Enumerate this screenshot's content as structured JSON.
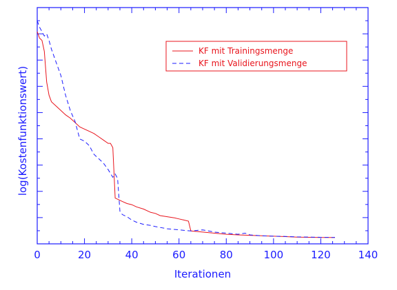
{
  "chart_data": {
    "type": "line",
    "title": "",
    "xlabel": "Iterationen",
    "ylabel": "log(Kostenfunktionswert)",
    "xlim": [
      0,
      140
    ],
    "ylim": [
      0,
      1
    ],
    "xticks": [
      "0",
      "20",
      "40",
      "60",
      "80",
      "100",
      "120",
      "140"
    ],
    "grid": false,
    "legend_position": "top-right",
    "colors": {
      "axes": "#1a1aff",
      "training": "#e8141c",
      "validation": "#1a1aff"
    },
    "series": [
      {
        "name": "KF mit Trainingsmenge",
        "style": "solid",
        "x": [
          0,
          1,
          2,
          3,
          4,
          5,
          6,
          8,
          10,
          12,
          14,
          16,
          18,
          20,
          22,
          24,
          26,
          28,
          30,
          31,
          32,
          33,
          34,
          35,
          36,
          38,
          40,
          42,
          45,
          48,
          50,
          52,
          55,
          58,
          60,
          62,
          64,
          65,
          70,
          75,
          80,
          85,
          90,
          95,
          100,
          105,
          110,
          115,
          120,
          126
        ],
        "y": [
          0.95,
          0.92,
          0.91,
          0.86,
          0.72,
          0.66,
          0.63,
          0.61,
          0.59,
          0.57,
          0.555,
          0.535,
          0.515,
          0.505,
          0.495,
          0.485,
          0.47,
          0.455,
          0.44,
          0.44,
          0.42,
          0.19,
          0.185,
          0.18,
          0.175,
          0.165,
          0.16,
          0.15,
          0.14,
          0.125,
          0.12,
          0.11,
          0.105,
          0.1,
          0.095,
          0.09,
          0.085,
          0.04,
          0.035,
          0.03,
          0.025,
          0.022,
          0.02,
          0.018,
          0.016,
          0.014,
          0.012,
          0.011,
          0.01,
          0.01
        ]
      },
      {
        "name": "KF mit Validierungsmenge",
        "style": "dashed",
        "x": [
          0,
          1,
          2,
          3,
          4,
          5,
          6,
          8,
          10,
          12,
          14,
          16,
          18,
          20,
          22,
          24,
          26,
          28,
          30,
          32,
          33,
          34,
          35,
          36,
          38,
          40,
          42,
          45,
          48,
          50,
          55,
          60,
          65,
          70,
          75,
          80,
          85,
          88,
          90,
          95,
          100,
          105,
          110,
          115,
          120,
          126
        ],
        "y": [
          1.0,
          0.97,
          0.95,
          0.93,
          0.94,
          0.91,
          0.87,
          0.81,
          0.75,
          0.66,
          0.59,
          0.54,
          0.46,
          0.45,
          0.43,
          0.39,
          0.37,
          0.35,
          0.32,
          0.285,
          0.3,
          0.28,
          0.13,
          0.115,
          0.105,
          0.09,
          0.08,
          0.07,
          0.065,
          0.06,
          0.05,
          0.045,
          0.04,
          0.045,
          0.035,
          0.03,
          0.025,
          0.03,
          0.022,
          0.018,
          0.016,
          0.015,
          0.013,
          0.012,
          0.011,
          0.01
        ]
      }
    ]
  }
}
